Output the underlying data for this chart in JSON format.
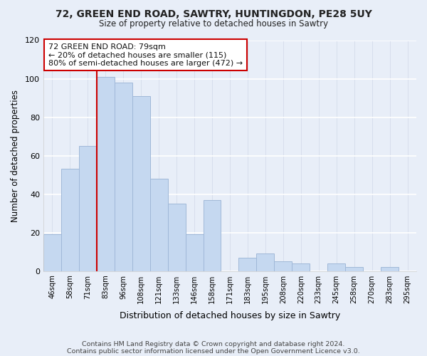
{
  "title": "72, GREEN END ROAD, SAWTRY, HUNTINGDON, PE28 5UY",
  "subtitle": "Size of property relative to detached houses in Sawtry",
  "xlabel": "Distribution of detached houses by size in Sawtry",
  "ylabel": "Number of detached properties",
  "bar_labels": [
    "46sqm",
    "58sqm",
    "71sqm",
    "83sqm",
    "96sqm",
    "108sqm",
    "121sqm",
    "133sqm",
    "146sqm",
    "158sqm",
    "171sqm",
    "183sqm",
    "195sqm",
    "208sqm",
    "220sqm",
    "233sqm",
    "245sqm",
    "258sqm",
    "270sqm",
    "283sqm",
    "295sqm"
  ],
  "bar_values": [
    19,
    53,
    65,
    101,
    98,
    91,
    48,
    35,
    19,
    37,
    0,
    7,
    9,
    5,
    4,
    0,
    4,
    2,
    0,
    2,
    0
  ],
  "bar_color": "#c5d8f0",
  "bar_edge_color": "#a0b8d8",
  "vline_color": "#cc0000",
  "vline_x_index": 2.5,
  "annotation_line1": "72 GREEN END ROAD: 79sqm",
  "annotation_line2": "← 20% of detached houses are smaller (115)",
  "annotation_line3": "80% of semi-detached houses are larger (472) →",
  "annotation_box_color": "#ffffff",
  "annotation_box_edge": "#cc0000",
  "ylim": [
    0,
    120
  ],
  "yticks": [
    0,
    20,
    40,
    60,
    80,
    100,
    120
  ],
  "footer_line1": "Contains HM Land Registry data © Crown copyright and database right 2024.",
  "footer_line2": "Contains public sector information licensed under the Open Government Licence v3.0.",
  "bg_color": "#e8eef8"
}
